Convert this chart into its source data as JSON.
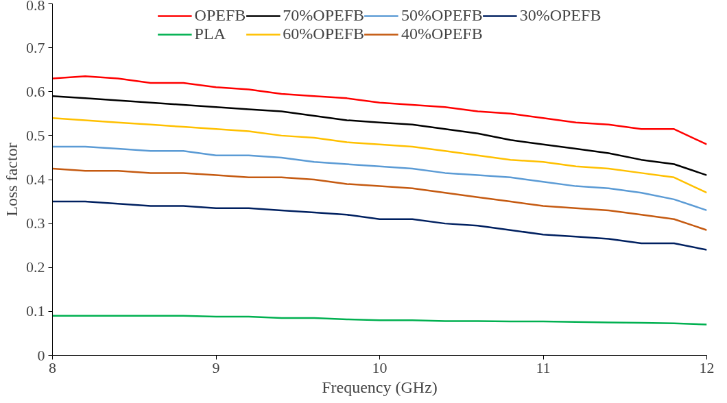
{
  "chart_data": {
    "type": "line",
    "xlabel": "Frequency (GHz)",
    "ylabel": "Loss factor",
    "x": [
      8,
      8.2,
      8.4,
      8.6,
      8.8,
      9,
      9.2,
      9.4,
      9.6,
      9.8,
      10,
      10.2,
      10.4,
      10.6,
      10.8,
      11,
      11.2,
      11.4,
      11.6,
      11.8,
      12
    ],
    "series": [
      {
        "name": "OPEFB",
        "color": "#ff0000",
        "values": [
          0.63,
          0.635,
          0.63,
          0.62,
          0.62,
          0.61,
          0.605,
          0.595,
          0.59,
          0.585,
          0.575,
          0.57,
          0.565,
          0.555,
          0.55,
          0.54,
          0.53,
          0.525,
          0.515,
          0.515,
          0.48
        ]
      },
      {
        "name": "PLA",
        "color": "#00b050",
        "values": [
          0.09,
          0.09,
          0.09,
          0.09,
          0.09,
          0.088,
          0.088,
          0.085,
          0.085,
          0.082,
          0.08,
          0.08,
          0.078,
          0.078,
          0.077,
          0.077,
          0.076,
          0.075,
          0.074,
          0.073,
          0.07
        ]
      },
      {
        "name": "70%OPEFB",
        "color": "#000000",
        "values": [
          0.59,
          0.585,
          0.58,
          0.575,
          0.57,
          0.565,
          0.56,
          0.555,
          0.545,
          0.535,
          0.53,
          0.525,
          0.515,
          0.505,
          0.49,
          0.48,
          0.47,
          0.46,
          0.445,
          0.435,
          0.41
        ]
      },
      {
        "name": "60%OPEFB",
        "color": "#ffc000",
        "values": [
          0.54,
          0.535,
          0.53,
          0.525,
          0.52,
          0.515,
          0.51,
          0.5,
          0.495,
          0.485,
          0.48,
          0.475,
          0.465,
          0.455,
          0.445,
          0.44,
          0.43,
          0.425,
          0.415,
          0.405,
          0.37
        ]
      },
      {
        "name": "50%OPEFB",
        "color": "#5b9bd5",
        "values": [
          0.475,
          0.475,
          0.47,
          0.465,
          0.465,
          0.455,
          0.455,
          0.45,
          0.44,
          0.435,
          0.43,
          0.425,
          0.415,
          0.41,
          0.405,
          0.395,
          0.385,
          0.38,
          0.37,
          0.355,
          0.33
        ]
      },
      {
        "name": "40%OPEFB",
        "color": "#c55a11",
        "values": [
          0.425,
          0.42,
          0.42,
          0.415,
          0.415,
          0.41,
          0.405,
          0.405,
          0.4,
          0.39,
          0.385,
          0.38,
          0.37,
          0.36,
          0.35,
          0.34,
          0.335,
          0.33,
          0.32,
          0.31,
          0.285
        ]
      },
      {
        "name": "30%OPEFB",
        "color": "#002060",
        "values": [
          0.35,
          0.35,
          0.345,
          0.34,
          0.34,
          0.335,
          0.335,
          0.33,
          0.325,
          0.32,
          0.31,
          0.31,
          0.3,
          0.295,
          0.285,
          0.275,
          0.27,
          0.265,
          0.255,
          0.255,
          0.24
        ]
      }
    ],
    "xlim": [
      8,
      12
    ],
    "xticks": [
      8,
      9,
      10,
      11,
      12
    ],
    "ylim": [
      0,
      0.8
    ],
    "yticks": [
      0,
      0.1,
      0.2,
      0.3,
      0.4,
      0.5,
      0.6,
      0.7,
      0.8
    ],
    "grid": false,
    "legend": "top",
    "line_style": "solid",
    "marker": "none"
  }
}
